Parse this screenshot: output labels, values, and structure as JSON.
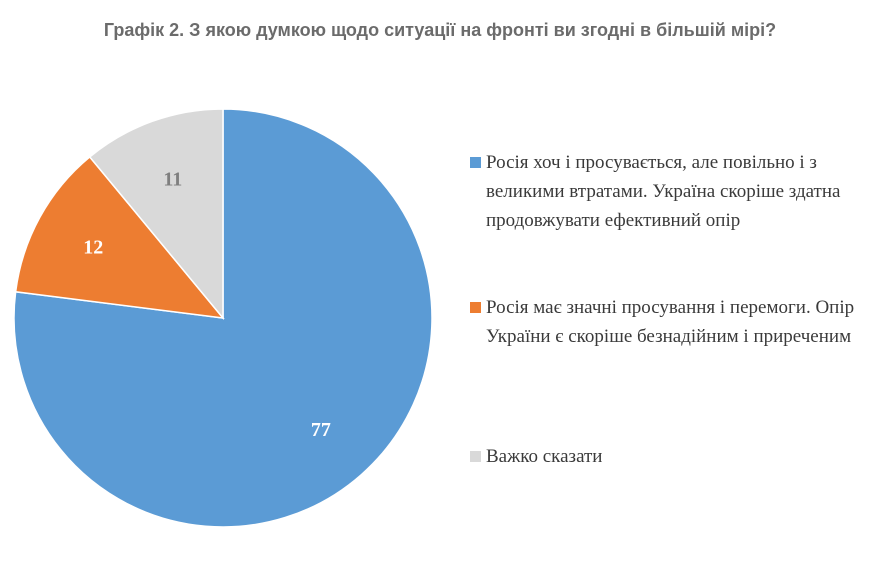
{
  "chart_data": {
    "type": "pie",
    "title": "Графік 2. З якою думкою щодо ситуації на фронті ви згодні в більшій мірі?",
    "categories": [
      "Росія хоч і просувається, але повільно і з великими втратами. Україна скоріше здатна продовжувати ефективний опір",
      "Росія має значні просування і перемоги. Опір України є скоріше безнадійним і приреченим",
      "Важко сказати"
    ],
    "values": [
      77,
      12,
      11
    ],
    "data_labels": [
      "77",
      "12",
      "11"
    ],
    "colors": [
      "#5b9bd5",
      "#ed7d31",
      "#d9d9d9"
    ],
    "label_colors": [
      "#ffffff",
      "#ffffff",
      "#7f7f7f"
    ],
    "legend_position": "right"
  }
}
